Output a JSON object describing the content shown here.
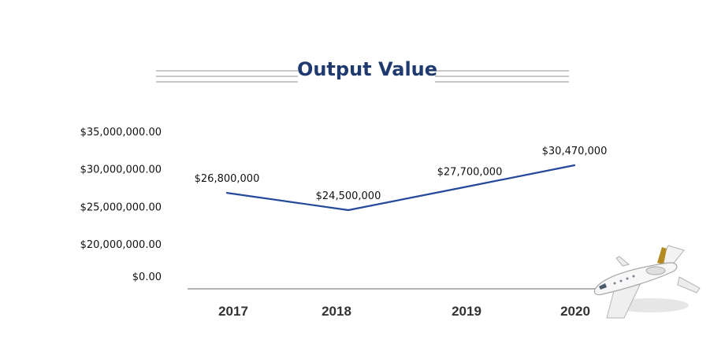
{
  "chart_data": {
    "type": "line",
    "title": "Output Value",
    "xlabel": "",
    "ylabel": "",
    "categories": [
      "2017",
      "2018",
      "2019",
      "2020"
    ],
    "series": [
      {
        "values": [
          26800000,
          24500000,
          27700000,
          30470000
        ],
        "data_labels": [
          "$26,800,000",
          "$24,500,000",
          "$27,700,000",
          "$30,470,000"
        ]
      }
    ],
    "y_tick_labels": [
      "$0.00",
      "$20,000,000.00",
      "$25,000,000.00",
      "$30,000,000.00",
      "$35,000,000.00"
    ],
    "grid": false,
    "legend": "none",
    "colors": {
      "title": "#1f3a6e",
      "line": "#24499a",
      "title_rules": "#c8c8c8",
      "axis": "#9a9a9a"
    },
    "decoration_icon": "business-jet-icon"
  }
}
